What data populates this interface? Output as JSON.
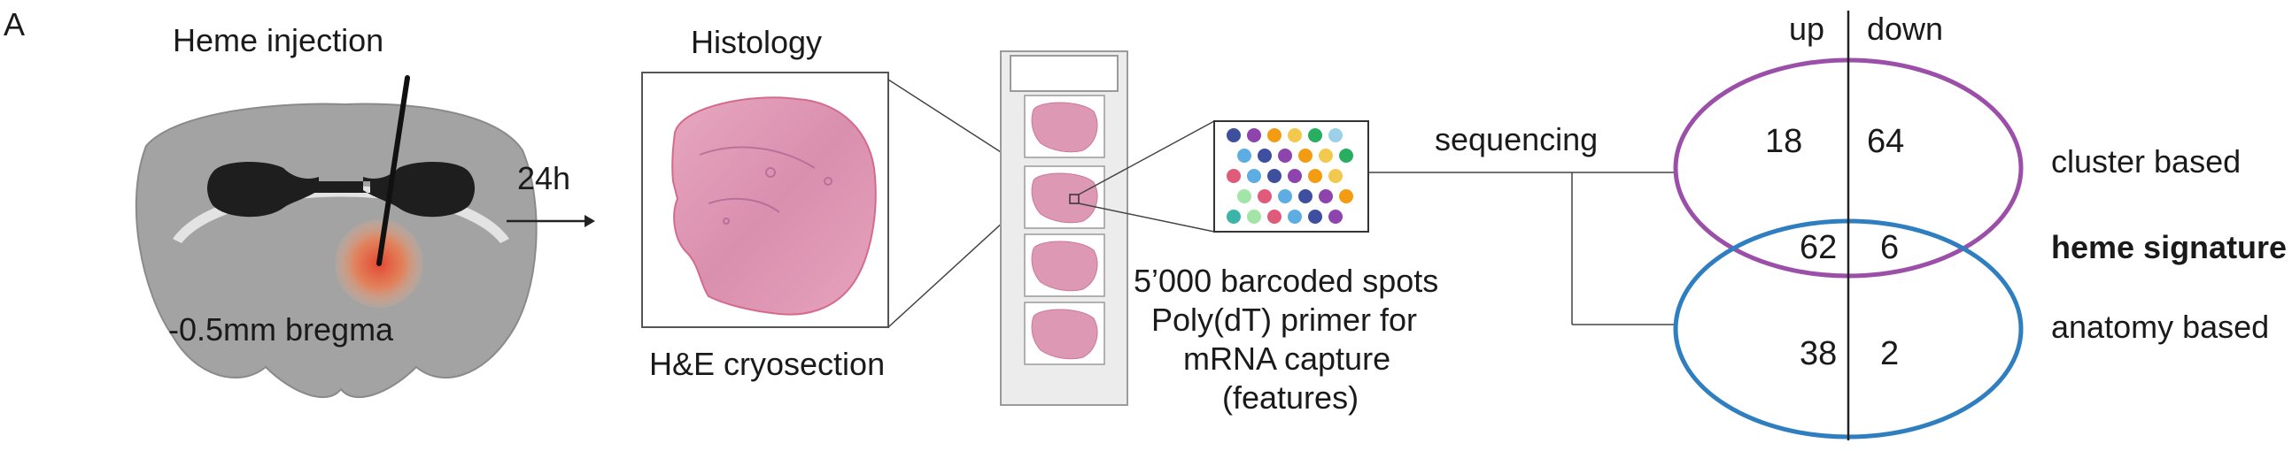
{
  "panel_label": "A",
  "injection": {
    "title": "Heme injection",
    "position_label": "-0.5mm bregma"
  },
  "timepoint": "24h",
  "histology": {
    "title": "Histology",
    "caption": "H&E cryosection"
  },
  "capture": {
    "lines": [
      "5’000 barcoded spots",
      "Poly(dT) primer for",
      "mRNA capture",
      "(features)"
    ]
  },
  "sequencing_label": "sequencing",
  "venn": {
    "col_headers": {
      "up": "up",
      "down": "down"
    },
    "cluster_only": {
      "up": "18",
      "down": "64"
    },
    "overlap": {
      "up": "62",
      "down": "6"
    },
    "anatomy_only": {
      "up": "38",
      "down": "2"
    },
    "labels": {
      "cluster": "cluster based",
      "overlap": "heme signature",
      "anatomy": "anatomy based"
    },
    "colors": {
      "cluster": "#9b4fa8",
      "anatomy": "#2f7fc0",
      "overlap_label": "#111111"
    }
  },
  "spot_colors": [
    "#3f4fa0",
    "#9ad1e8",
    "#e05a7a",
    "#f2c94c",
    "#3cb5a8",
    "#8e44ad",
    "#e74c3c",
    "#5dade2",
    "#27ae60",
    "#a3e4a7",
    "#f39c12",
    "#1abc9c"
  ]
}
